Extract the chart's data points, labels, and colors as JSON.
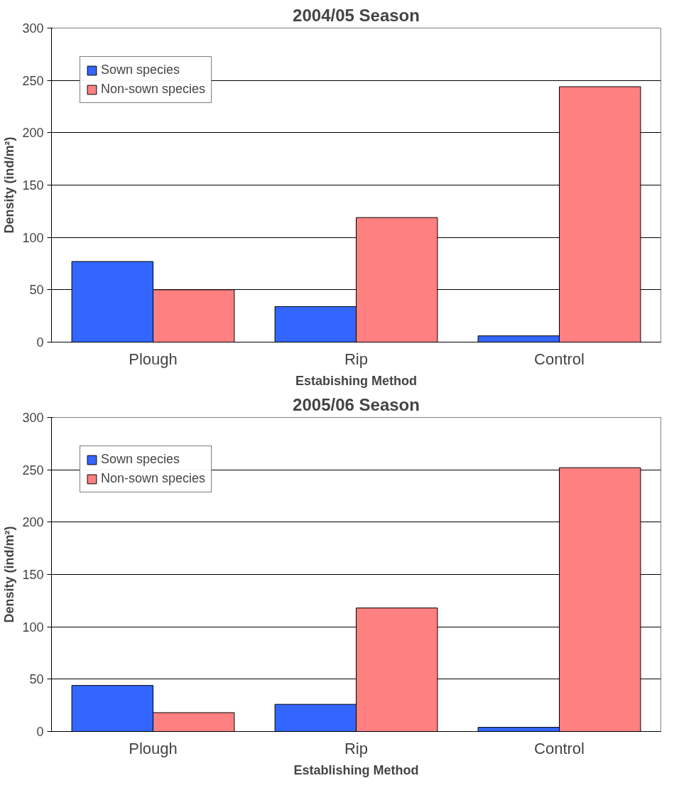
{
  "chart_data": [
    {
      "type": "bar",
      "title": "2004/05 Season",
      "xlabel": "Estabishing Method",
      "ylabel": "Density (ind/m²)",
      "categories": [
        "Plough",
        "Rip",
        "Control"
      ],
      "ylim": [
        0,
        300
      ],
      "yticks": [
        0,
        50,
        100,
        150,
        200,
        250,
        300
      ],
      "grid": "y",
      "legend": "top left",
      "series": [
        {
          "name": "Sown species",
          "color": "#3366ff",
          "values": [
            77,
            34,
            6
          ]
        },
        {
          "name": "Non-sown species",
          "color": "#ff8080",
          "values": [
            50,
            119,
            244
          ]
        }
      ]
    },
    {
      "type": "bar",
      "title": "2005/06 Season",
      "xlabel": "Establishing Method",
      "ylabel": "Density (ind/m²)",
      "categories": [
        "Plough",
        "Rip",
        "Control"
      ],
      "ylim": [
        0,
        300
      ],
      "yticks": [
        0,
        50,
        100,
        150,
        200,
        250,
        300
      ],
      "grid": "y",
      "legend": "top left",
      "series": [
        {
          "name": "Sown species",
          "color": "#3366ff",
          "values": [
            44,
            26,
            4
          ]
        },
        {
          "name": "Non-sown species",
          "color": "#ff8080",
          "values": [
            18,
            118,
            252
          ]
        }
      ]
    }
  ]
}
